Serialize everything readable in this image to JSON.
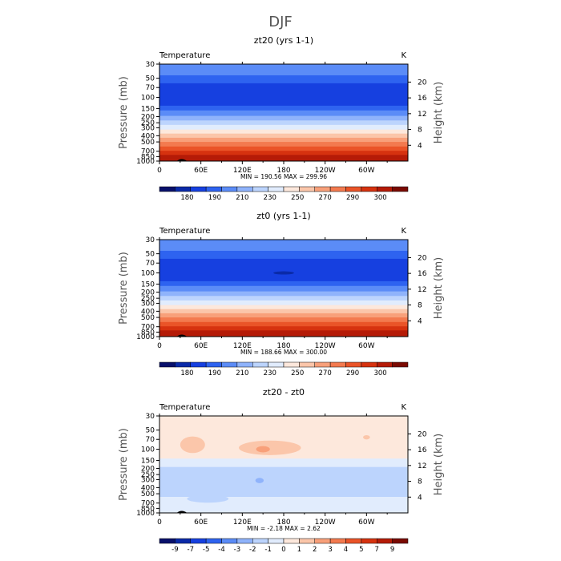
{
  "figure": {
    "title": "DJF"
  },
  "chart_data": [
    {
      "type": "heatmap",
      "title": "zt20 (yrs 1-1)",
      "left_label": "Temperature",
      "right_label": "K",
      "ylabel": "Pressure (mb)",
      "ylabel_right": "Height (km)",
      "x_ticks": [
        "0",
        "60E",
        "120E",
        "180",
        "120W",
        "60W"
      ],
      "x_range": [
        0,
        360
      ],
      "y_ticks": [
        "30",
        "50",
        "70",
        "100",
        "150",
        "200",
        "250",
        "300",
        "400",
        "500",
        "700",
        "850",
        "1000"
      ],
      "y_scale": "log",
      "y_range": [
        1000,
        30
      ],
      "height_ticks": [
        "4",
        "8",
        "12",
        "16",
        "20"
      ],
      "stats_text": "MIN = 190.56   MAX = 299.96",
      "colorbar": {
        "labels": [
          "180",
          "190",
          "210",
          "230",
          "250",
          "270",
          "290",
          "300"
        ],
        "colors": [
          "#08106b",
          "#0a2aa8",
          "#1640e0",
          "#2e63f0",
          "#5b8cf7",
          "#8fb3fb",
          "#bcd4fd",
          "#e1ecfd",
          "#fde8dc",
          "#fbc6aa",
          "#f8a07a",
          "#f37a4f",
          "#ea5428",
          "#d6320f",
          "#b51b07",
          "#7a0a02"
        ]
      },
      "bands": [
        {
          "p_top": 30,
          "p_bot": 45,
          "color": "#5b8cf7"
        },
        {
          "p_top": 45,
          "p_bot": 60,
          "color": "#2e63f0"
        },
        {
          "p_top": 60,
          "p_bot": 135,
          "color": "#1640e0"
        },
        {
          "p_top": 135,
          "p_bot": 160,
          "color": "#2e63f0"
        },
        {
          "p_top": 160,
          "p_bot": 195,
          "color": "#5b8cf7"
        },
        {
          "p_top": 195,
          "p_bot": 230,
          "color": "#8fb3fb"
        },
        {
          "p_top": 230,
          "p_bot": 270,
          "color": "#bcd4fd"
        },
        {
          "p_top": 270,
          "p_bot": 320,
          "color": "#e1ecfd"
        },
        {
          "p_top": 320,
          "p_bot": 370,
          "color": "#fde8dc"
        },
        {
          "p_top": 370,
          "p_bot": 430,
          "color": "#fbc6aa"
        },
        {
          "p_top": 430,
          "p_bot": 500,
          "color": "#f8a07a"
        },
        {
          "p_top": 500,
          "p_bot": 590,
          "color": "#f37a4f"
        },
        {
          "p_top": 590,
          "p_bot": 690,
          "color": "#ea5428"
        },
        {
          "p_top": 690,
          "p_bot": 800,
          "color": "#d6320f"
        },
        {
          "p_top": 800,
          "p_bot": 1000,
          "color": "#b51b07"
        }
      ],
      "blobs": []
    },
    {
      "type": "heatmap",
      "title": "zt0 (yrs 1-1)",
      "left_label": "Temperature",
      "right_label": "K",
      "ylabel": "Pressure (mb)",
      "ylabel_right": "Height (km)",
      "x_ticks": [
        "0",
        "60E",
        "120E",
        "180",
        "120W",
        "60W"
      ],
      "x_range": [
        0,
        360
      ],
      "y_ticks": [
        "30",
        "50",
        "70",
        "100",
        "150",
        "200",
        "250",
        "300",
        "400",
        "500",
        "700",
        "850",
        "1000"
      ],
      "y_scale": "log",
      "y_range": [
        1000,
        30
      ],
      "height_ticks": [
        "4",
        "8",
        "12",
        "16",
        "20"
      ],
      "stats_text": "MIN = 188.66   MAX = 300.00",
      "colorbar": {
        "labels": [
          "180",
          "190",
          "210",
          "230",
          "250",
          "270",
          "290",
          "300"
        ],
        "colors": [
          "#08106b",
          "#0a2aa8",
          "#1640e0",
          "#2e63f0",
          "#5b8cf7",
          "#8fb3fb",
          "#bcd4fd",
          "#e1ecfd",
          "#fde8dc",
          "#fbc6aa",
          "#f8a07a",
          "#f37a4f",
          "#ea5428",
          "#d6320f",
          "#b51b07",
          "#7a0a02"
        ]
      },
      "bands": [
        {
          "p_top": 30,
          "p_bot": 45,
          "color": "#5b8cf7"
        },
        {
          "p_top": 45,
          "p_bot": 60,
          "color": "#2e63f0"
        },
        {
          "p_top": 60,
          "p_bot": 135,
          "color": "#1640e0"
        },
        {
          "p_top": 135,
          "p_bot": 160,
          "color": "#2e63f0"
        },
        {
          "p_top": 160,
          "p_bot": 195,
          "color": "#5b8cf7"
        },
        {
          "p_top": 195,
          "p_bot": 230,
          "color": "#8fb3fb"
        },
        {
          "p_top": 230,
          "p_bot": 270,
          "color": "#bcd4fd"
        },
        {
          "p_top": 270,
          "p_bot": 320,
          "color": "#e1ecfd"
        },
        {
          "p_top": 320,
          "p_bot": 370,
          "color": "#fde8dc"
        },
        {
          "p_top": 370,
          "p_bot": 430,
          "color": "#fbc6aa"
        },
        {
          "p_top": 430,
          "p_bot": 500,
          "color": "#f8a07a"
        },
        {
          "p_top": 500,
          "p_bot": 590,
          "color": "#f37a4f"
        },
        {
          "p_top": 590,
          "p_bot": 690,
          "color": "#ea5428"
        },
        {
          "p_top": 690,
          "p_bot": 800,
          "color": "#d6320f"
        },
        {
          "p_top": 800,
          "p_bot": 1000,
          "color": "#b51b07"
        }
      ],
      "blobs": [
        {
          "lon": 180,
          "p": 100,
          "lon_halfwidth": 15,
          "p_factor": 1.06,
          "color": "#0a2aa8"
        }
      ]
    },
    {
      "type": "heatmap",
      "title": "zt20 - zt0",
      "left_label": "Temperature",
      "right_label": "K",
      "ylabel": "Pressure (mb)",
      "ylabel_right": "Height (km)",
      "x_ticks": [
        "0",
        "60E",
        "120E",
        "180",
        "120W",
        "60W"
      ],
      "x_range": [
        0,
        360
      ],
      "y_ticks": [
        "30",
        "50",
        "70",
        "100",
        "150",
        "200",
        "250",
        "300",
        "400",
        "500",
        "700",
        "850",
        "1000"
      ],
      "y_scale": "log",
      "y_range": [
        1000,
        30
      ],
      "height_ticks": [
        "4",
        "8",
        "12",
        "16",
        "20"
      ],
      "stats_text": "MIN =   -2.18   MAX =    2.62",
      "colorbar": {
        "labels": [
          "-9",
          "-7",
          "-5",
          "-4",
          "-3",
          "-2",
          "-1",
          "0",
          "1",
          "2",
          "3",
          "4",
          "5",
          "7",
          "9"
        ],
        "colors": [
          "#08106b",
          "#0a2aa8",
          "#1640e0",
          "#2e63f0",
          "#5b8cf7",
          "#8fb3fb",
          "#bcd4fd",
          "#e1ecfd",
          "#fde8dc",
          "#fbc6aa",
          "#f8a07a",
          "#f37a4f",
          "#ea5428",
          "#d6320f",
          "#b51b07",
          "#7a0a02"
        ]
      },
      "bands": [
        {
          "p_top": 30,
          "p_bot": 140,
          "color": "#fde8dc"
        },
        {
          "p_top": 140,
          "p_bot": 190,
          "color": "#e1ecfd"
        },
        {
          "p_top": 190,
          "p_bot": 560,
          "color": "#bcd4fd"
        },
        {
          "p_top": 560,
          "p_bot": 1000,
          "color": "#e1ecfd"
        }
      ],
      "blobs": [
        {
          "lon": 48,
          "p": 85,
          "lon_halfwidth": 18,
          "p_factor": 1.35,
          "color": "#fbc6aa"
        },
        {
          "lon": 160,
          "p": 95,
          "lon_halfwidth": 45,
          "p_factor": 1.3,
          "color": "#fbc6aa"
        },
        {
          "lon": 150,
          "p": 100,
          "lon_halfwidth": 10,
          "p_factor": 1.12,
          "color": "#f8a07a"
        },
        {
          "lon": 300,
          "p": 65,
          "lon_halfwidth": 5,
          "p_factor": 1.08,
          "color": "#fbc6aa"
        },
        {
          "lon": 145,
          "p": 310,
          "lon_halfwidth": 6,
          "p_factor": 1.1,
          "color": "#8fb3fb"
        },
        {
          "lon": 70,
          "p": 600,
          "lon_halfwidth": 30,
          "p_factor": 1.15,
          "color": "#bcd4fd"
        }
      ]
    }
  ]
}
